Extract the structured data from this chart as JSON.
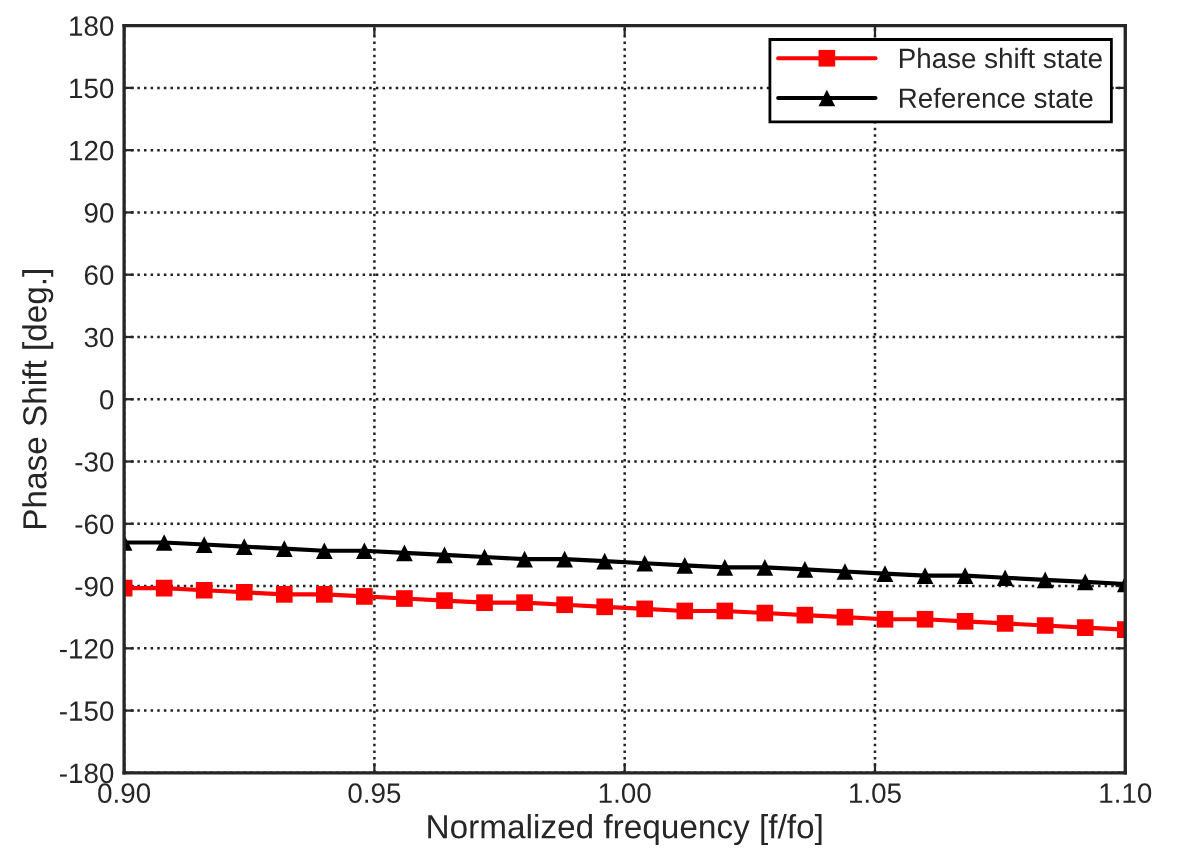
{
  "chart_data": {
    "type": "line",
    "xlabel": "Normalized frequency [f/fo]",
    "ylabel": "Phase Shift [deg.]",
    "x": [
      0.9,
      0.908,
      0.916,
      0.924,
      0.932,
      0.94,
      0.948,
      0.956,
      0.964,
      0.972,
      0.98,
      0.988,
      0.996,
      1.004,
      1.012,
      1.02,
      1.028,
      1.036,
      1.044,
      1.052,
      1.06,
      1.068,
      1.076,
      1.084,
      1.092,
      1.1
    ],
    "series": [
      {
        "name": "Phase shift state",
        "color": "#ff0000",
        "marker": "square",
        "values": [
          -91,
          -91,
          -92,
          -93,
          -94,
          -94,
          -95,
          -96,
          -97,
          -98,
          -98,
          -99,
          -100,
          -101,
          -102,
          -102,
          -103,
          -104,
          -105,
          -106,
          -106,
          -107,
          -108,
          -109,
          -110,
          -111
        ]
      },
      {
        "name": "Reference state",
        "color": "#000000",
        "marker": "triangle",
        "values": [
          -69,
          -69,
          -70,
          -71,
          -72,
          -73,
          -73,
          -74,
          -75,
          -76,
          -77,
          -77,
          -78,
          -79,
          -80,
          -81,
          -81,
          -82,
          -83,
          -84,
          -85,
          -85,
          -86,
          -87,
          -88,
          -89
        ]
      }
    ],
    "xlim": [
      0.9,
      1.1
    ],
    "xticks": [
      {
        "value": 0.9,
        "label": "0.90"
      },
      {
        "value": 0.95,
        "label": "0.95"
      },
      {
        "value": 1.0,
        "label": "1.00"
      },
      {
        "value": 1.05,
        "label": "1.05"
      },
      {
        "value": 1.1,
        "label": "1.10"
      }
    ],
    "ylim": [
      -180,
      180
    ],
    "yticks": [
      -180,
      -150,
      -120,
      -90,
      -60,
      -30,
      0,
      30,
      60,
      90,
      120,
      150,
      180
    ],
    "grid": true,
    "legend": "top right",
    "line_style": "solid"
  }
}
